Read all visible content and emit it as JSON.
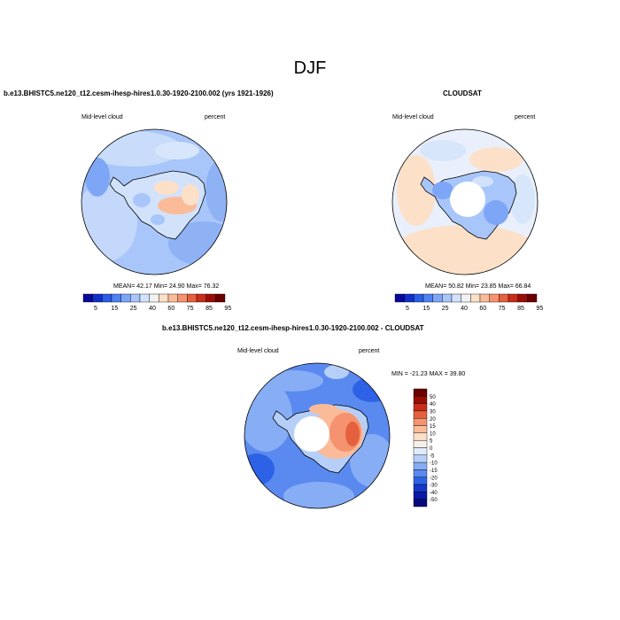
{
  "figure": {
    "season": "DJF"
  },
  "panels": [
    {
      "title": "b.e13.BHISTC5.ne120_t12.cesm-ihesp-hires1.0.30-1920-2100.002 (yrs 1921-1926)",
      "left_label": "Mid-level cloud",
      "right_label": "percent",
      "stats": "MEAN= 42.17  Min= 24.90  Max= 76.32"
    },
    {
      "title": "CLOUDSAT",
      "left_label": "Mid-level cloud",
      "right_label": "percent",
      "stats": "MEAN= 50.82  Min= 23.85  Max= 66.84"
    },
    {
      "title": "b.e13.BHISTC5.ne120_t12.cesm-ihesp-hires1.0.30-1920-2100.002 - CLOUDSAT",
      "left_label": "Mid-level cloud",
      "right_label": "percent",
      "stats": "MIN = -21.23 MAX = 39.80"
    }
  ],
  "colorbars": {
    "abs_labels": [
      "5",
      "15",
      "25",
      "40",
      "60",
      "75",
      "85",
      "95"
    ],
    "abs_colors": [
      "#08089a",
      "#1030c8",
      "#2a5ee8",
      "#4f82f2",
      "#7ea6f7",
      "#a9c6fa",
      "#d2e2fb",
      "#f1f1f1",
      "#fde0c8",
      "#fbbb99",
      "#f59270",
      "#e5603e",
      "#c92d18",
      "#9a0d06",
      "#6b0000"
    ],
    "diff_labels": [
      "50",
      "40",
      "30",
      "20",
      "15",
      "10",
      "5",
      "0",
      "-5",
      "-10",
      "-15",
      "-20",
      "-30",
      "-40",
      "-50"
    ],
    "diff_colors": [
      "#6b0000",
      "#9a0d06",
      "#c92d18",
      "#e5603e",
      "#f59270",
      "#fbbb99",
      "#fde0c8",
      "#f7efe9",
      "#e0ebfb",
      "#b6cff9",
      "#87adf5",
      "#5a8af0",
      "#2e62e6",
      "#1438c8",
      "#0a1aa8",
      "#050a7a"
    ]
  }
}
